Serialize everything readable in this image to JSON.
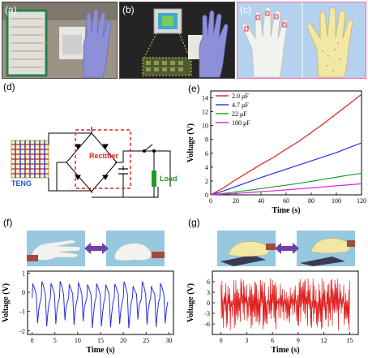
{
  "panel_labels": {
    "a": "(a)",
    "b": "(b)",
    "c": "(c)",
    "d": "(d)",
    "e": "(e)",
    "f": "(f)",
    "g": "(g)"
  },
  "circuit": {
    "rectifier_label": "Rectifier",
    "teng_label": "TENG",
    "load_label": "Load",
    "colors": {
      "rectifier": "#e02020",
      "teng": "#2255cc",
      "load": "#1b9e2a",
      "wire": "#000000"
    }
  },
  "chart_data": [
    {
      "panel": "e",
      "type": "line",
      "xlabel": "Time (s)",
      "ylabel": "Voltage (V)",
      "xlim": [
        0,
        120
      ],
      "ylim": [
        0,
        15
      ],
      "xticks": [
        0,
        20,
        40,
        60,
        80,
        100,
        120
      ],
      "yticks": [
        0,
        2,
        4,
        6,
        8,
        10,
        12,
        14
      ],
      "legend_position": "top-left",
      "series": [
        {
          "name": "2.0 μF",
          "color": "#e02020",
          "x": [
            0,
            10,
            20,
            30,
            40,
            50,
            60,
            70,
            80,
            90,
            100,
            110,
            120
          ],
          "y": [
            0,
            1.0,
            2.2,
            3.3,
            4.4,
            5.4,
            6.6,
            7.7,
            9.0,
            10.3,
            11.7,
            13.1,
            14.5
          ]
        },
        {
          "name": "4.7 μF",
          "color": "#2233dd",
          "x": [
            0,
            10,
            20,
            30,
            40,
            50,
            60,
            70,
            80,
            90,
            100,
            110,
            120
          ],
          "y": [
            0,
            0.55,
            1.2,
            1.85,
            2.5,
            3.1,
            3.7,
            4.3,
            4.9,
            5.5,
            6.1,
            6.8,
            7.5
          ]
        },
        {
          "name": "22 μF",
          "color": "#1b9e2a",
          "x": [
            0,
            10,
            20,
            30,
            40,
            50,
            60,
            70,
            80,
            90,
            100,
            110,
            120
          ],
          "y": [
            0,
            0.2,
            0.42,
            0.65,
            0.9,
            1.15,
            1.4,
            1.65,
            1.95,
            2.25,
            2.55,
            2.85,
            3.1
          ]
        },
        {
          "name": "100 μF",
          "color": "#dd22dd",
          "x": [
            0,
            10,
            20,
            30,
            40,
            50,
            60,
            70,
            80,
            90,
            100,
            110,
            120
          ],
          "y": [
            0,
            0.1,
            0.2,
            0.32,
            0.45,
            0.58,
            0.72,
            0.86,
            1.0,
            1.15,
            1.3,
            1.45,
            1.6
          ]
        }
      ]
    },
    {
      "panel": "f",
      "type": "line",
      "xlabel": "Time (s)",
      "ylabel": "Voltage (V)",
      "xlim": [
        -1,
        31
      ],
      "ylim": [
        -2.2,
        1.1
      ],
      "xticks": [
        0,
        5,
        10,
        15,
        20,
        25,
        30
      ],
      "yticks": [
        -2,
        -1,
        0,
        1
      ],
      "series": [
        {
          "name": "",
          "color": "#2233dd",
          "signal": {
            "pulses": 15,
            "period_s": 2.0,
            "start_s": 0,
            "peak_high": 0.6,
            "peak_low": -1.9,
            "baseline": -0.3
          }
        }
      ]
    },
    {
      "panel": "g",
      "type": "line",
      "xlabel": "Time (s)",
      "ylabel": "Voltage (V)",
      "xlim": [
        -1,
        16
      ],
      "ylim": [
        -9,
        9
      ],
      "xticks": [
        0,
        3,
        6,
        9,
        12,
        15
      ],
      "yticks": [
        -6,
        -3,
        0,
        3,
        6
      ],
      "series": [
        {
          "name": "",
          "color": "#e02020",
          "signal": {
            "duration_s": 15,
            "peak_high": 7,
            "peak_low": -8,
            "mean": 0
          }
        }
      ]
    }
  ]
}
